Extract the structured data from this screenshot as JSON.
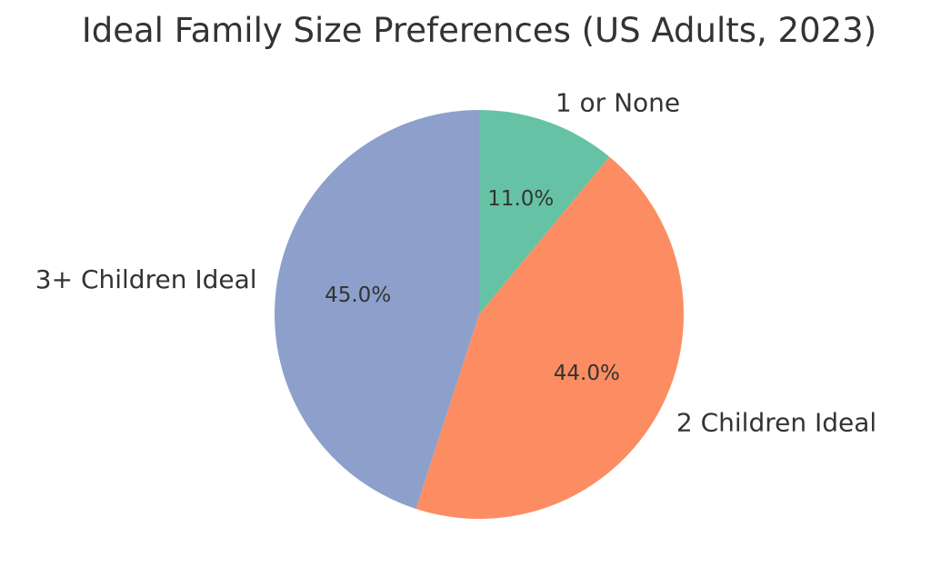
{
  "chart_data": {
    "type": "pie",
    "title": "Ideal Family Size Preferences (US Adults, 2023)",
    "categories": [
      "1 or None",
      "2 Children Ideal",
      "3+ Children Ideal"
    ],
    "values": [
      11.0,
      44.0,
      45.0
    ],
    "percent_labels": [
      "11.0%",
      "44.0%",
      "45.0%"
    ],
    "colors": [
      "#66c2a5",
      "#fc8d62",
      "#8da0cb"
    ],
    "start_angle_deg": 90,
    "direction": "clockwise",
    "legend": "none"
  }
}
